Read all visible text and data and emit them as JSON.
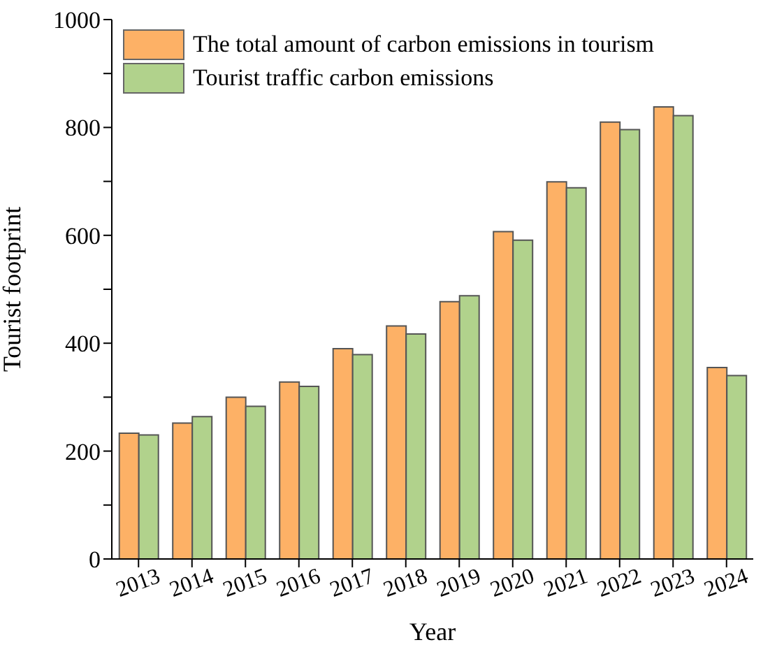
{
  "chart_data": {
    "type": "bar",
    "xlabel": "Year",
    "ylabel": "Tourist footprint",
    "categories": [
      "2013",
      "2014",
      "2015",
      "2016",
      "2017",
      "2018",
      "2019",
      "2020",
      "2021",
      "2022",
      "2023",
      "2024"
    ],
    "series": [
      {
        "name": "The total amount of carbon emissions in tourism",
        "color": "#fdb166",
        "values": [
          233,
          252,
          300,
          328,
          390,
          432,
          477,
          607,
          699,
          810,
          838,
          355
        ]
      },
      {
        "name": "Tourist traffic carbon emissions",
        "color": "#b1d28c",
        "values": [
          230,
          264,
          283,
          320,
          379,
          417,
          488,
          591,
          688,
          796,
          822,
          340
        ]
      }
    ],
    "ylim": [
      0,
      1000
    ],
    "yticks": [
      0,
      {
        "value": 100,
        "label": null
      },
      200,
      {
        "value": 300,
        "label": null
      },
      400,
      {
        "value": 500,
        "label": null
      },
      600,
      {
        "value": 700,
        "label": null
      },
      800,
      {
        "value": 900,
        "label": null
      },
      1000
    ],
    "legend": "top left"
  }
}
